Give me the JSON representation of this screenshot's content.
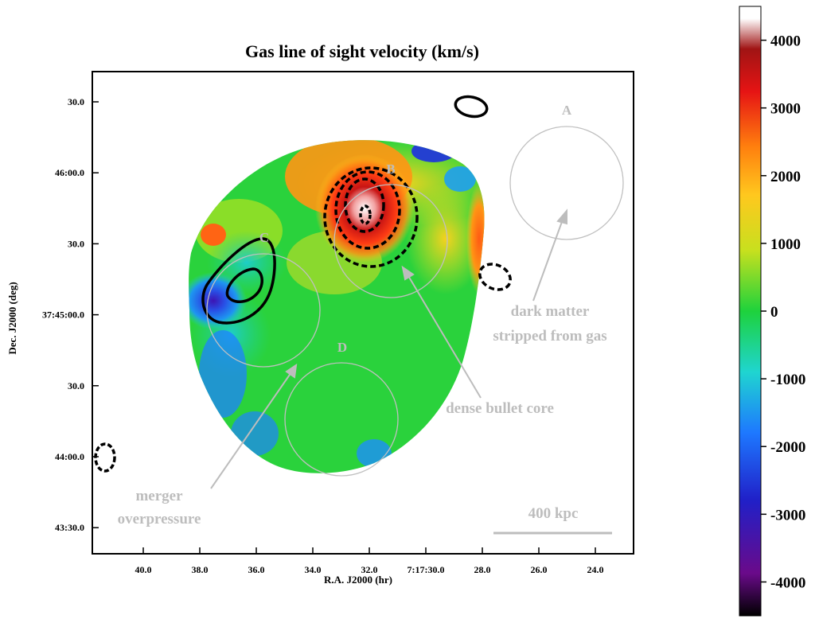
{
  "chart_data": {
    "type": "heatmap",
    "title": "Gas line of sight velocity (km/s)",
    "xlabel": "R.A. J2000 (hr)",
    "ylabel": "Dec. J2000 (deg)",
    "x_ticks": [
      "40.0",
      "38.0",
      "36.0",
      "34.0",
      "32.0",
      "7:17:30.0",
      "28.0",
      "26.0",
      "24.0"
    ],
    "y_ticks": [
      "30.0",
      "46:00.0",
      "30.0",
      "37:45:00.0",
      "30.0",
      "44:00.0",
      "43:30.0"
    ],
    "colorbar": {
      "ticks": [
        "4000",
        "3000",
        "2000",
        "1000",
        "0",
        "-1000",
        "-2000",
        "-3000",
        "-4000"
      ],
      "range": [
        -4500,
        4500
      ],
      "colors": [
        "#000000",
        "#6a0a8a",
        "#2020c8",
        "#1e78ff",
        "#1fd5d0",
        "#1ed23c",
        "#c8e01e",
        "#ffc81e",
        "#ff7f0e",
        "#e61414",
        "#a01414",
        "#ffffff"
      ]
    },
    "regions": [
      {
        "label": "A"
      },
      {
        "label": "B"
      },
      {
        "label": "C"
      },
      {
        "label": "D"
      }
    ],
    "annotations": [
      {
        "lines": [
          "dark matter",
          "stripped from gas"
        ]
      },
      {
        "lines": [
          "dense bullet core"
        ]
      },
      {
        "lines": [
          "merger",
          "overpressure"
        ]
      }
    ],
    "scalebar": {
      "label": "400 kpc"
    }
  }
}
